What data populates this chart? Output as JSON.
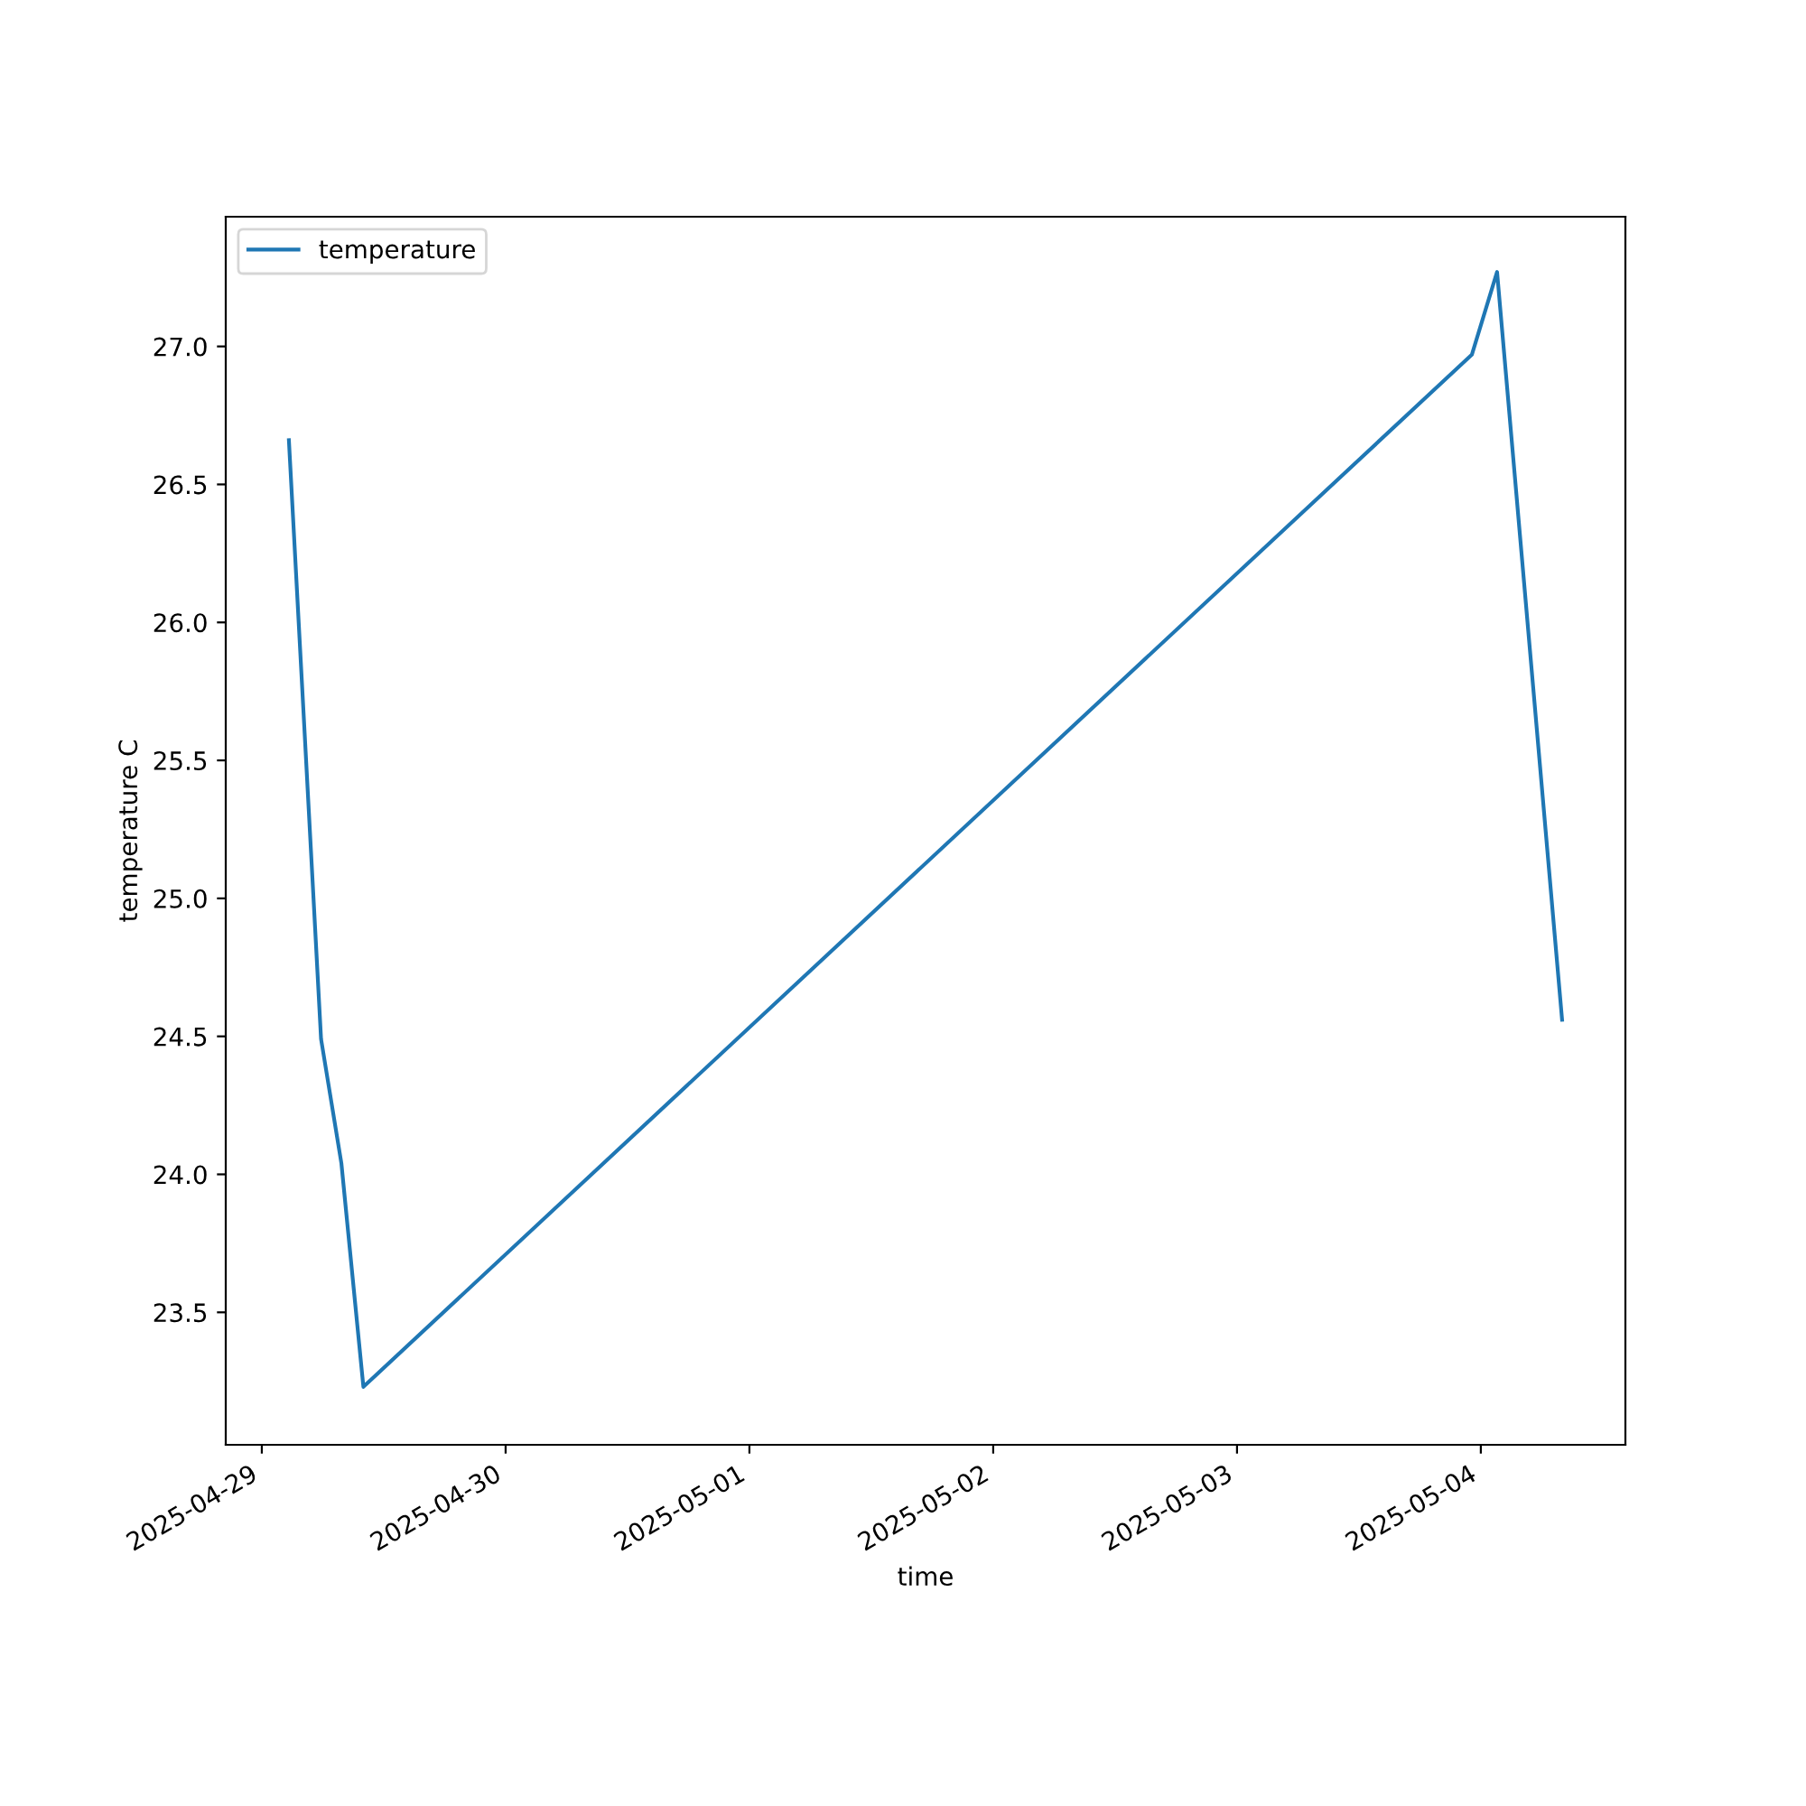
{
  "chart_data": {
    "type": "line",
    "xlabel": "time",
    "ylabel": "temperature C",
    "x": [
      "2025-04-29T02:40",
      "2025-04-29T05:50",
      "2025-04-29T07:50",
      "2025-04-29T10:00",
      "2025-05-03T23:07",
      "2025-05-04T01:36",
      "2025-05-04T08:00"
    ],
    "series": [
      {
        "name": "temperature",
        "color": "#1f77b4",
        "values": [
          26.66,
          24.49,
          24.04,
          23.23,
          26.97,
          27.27,
          24.56
        ]
      }
    ],
    "xlim": [
      "2025-04-28T20:27",
      "2025-05-04T14:14"
    ],
    "xticks": [
      "2025-04-29",
      "2025-04-30",
      "2025-05-01",
      "2025-05-02",
      "2025-05-03",
      "2025-05-04"
    ],
    "ylim": [
      23.02,
      27.47
    ],
    "yticks": [
      {
        "value": 23.5,
        "label": "23.5"
      },
      {
        "value": 24,
        "label": "24.0"
      },
      {
        "value": 24.5,
        "label": "24.5"
      },
      {
        "value": 25,
        "label": "25.0"
      },
      {
        "value": 25.5,
        "label": "25.5"
      },
      {
        "value": 26,
        "label": "26.0"
      },
      {
        "value": 26.5,
        "label": "26.5"
      },
      {
        "value": 27,
        "label": "27.0"
      }
    ],
    "legend": "top left",
    "grid": false
  }
}
